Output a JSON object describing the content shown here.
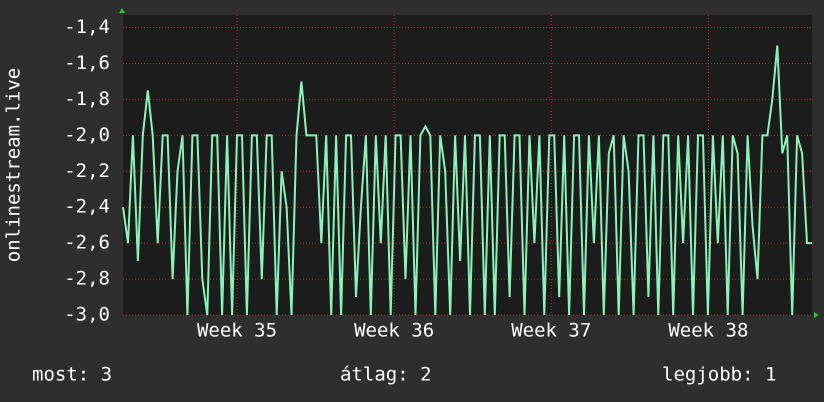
{
  "chart_data": {
    "type": "line",
    "y_label": "onlinestream.live",
    "color": "#88f5b8",
    "values": [
      -2.4,
      -2.6,
      -2.0,
      -2.7,
      -2.0,
      -1.75,
      -2.0,
      -2.6,
      -2.0,
      -2.0,
      -2.8,
      -2.2,
      -2.0,
      -3.0,
      -2.0,
      -2.0,
      -2.8,
      -3.0,
      -2.0,
      -2.0,
      -3.0,
      -2.0,
      -3.0,
      -2.0,
      -2.0,
      -3.0,
      -2.0,
      -2.0,
      -2.8,
      -2.0,
      -2.0,
      -3.0,
      -2.2,
      -2.4,
      -3.0,
      -2.0,
      -1.7,
      -2.0,
      -2.0,
      -2.0,
      -2.6,
      -2.0,
      -3.0,
      -2.0,
      -3.0,
      -2.0,
      -2.0,
      -2.9,
      -2.4,
      -2.0,
      -3.0,
      -2.0,
      -2.6,
      -2.0,
      -3.0,
      -2.0,
      -2.0,
      -2.8,
      -2.0,
      -3.0,
      -2.0,
      -1.95,
      -2.0,
      -3.0,
      -2.0,
      -2.2,
      -3.0,
      -2.0,
      -2.7,
      -2.0,
      -3.0,
      -2.0,
      -2.0,
      -3.0,
      -2.0,
      -3.0,
      -2.0,
      -2.0,
      -2.9,
      -2.0,
      -2.0,
      -3.0,
      -2.0,
      -2.6,
      -2.0,
      -3.0,
      -2.0,
      -2.0,
      -2.9,
      -2.0,
      -3.0,
      -2.0,
      -2.0,
      -3.0,
      -2.0,
      -2.6,
      -2.0,
      -3.0,
      -2.1,
      -2.0,
      -3.0,
      -2.0,
      -2.2,
      -3.0,
      -2.0,
      -2.0,
      -2.9,
      -2.0,
      -3.0,
      -2.0,
      -2.0,
      -3.0,
      -2.0,
      -2.6,
      -2.0,
      -3.0,
      -2.0,
      -2.0,
      -3.0,
      -2.0,
      -2.6,
      -2.0,
      -3.0,
      -2.0,
      -2.1,
      -3.0,
      -2.0,
      -2.5,
      -2.8,
      -2.0,
      -2.0,
      -1.8,
      -1.5,
      -2.1,
      -2.0,
      -3.0,
      -2.0,
      -2.1,
      -2.6,
      -2.6
    ],
    "xlim": [
      0,
      139
    ],
    "xticks": [
      {
        "value": 23,
        "label": "Week 35"
      },
      {
        "value": 54.7,
        "label": "Week 36"
      },
      {
        "value": 86.4,
        "label": "Week 37"
      },
      {
        "value": 118.1,
        "label": "Week 38"
      }
    ],
    "ylim": [
      -3.0,
      -1.33
    ],
    "yticks": [
      {
        "value": -3.0,
        "label": "-3,0"
      },
      {
        "value": -2.8,
        "label": "-2,8"
      },
      {
        "value": -2.6,
        "label": "-2,6"
      },
      {
        "value": -2.4,
        "label": "-2,4"
      },
      {
        "value": -2.2,
        "label": "-2,2"
      },
      {
        "value": -2.0,
        "label": "-2,0"
      },
      {
        "value": -1.8,
        "label": "-1,8"
      },
      {
        "value": -1.6,
        "label": "-1,6"
      },
      {
        "value": -1.4,
        "label": "-1,4"
      }
    ],
    "grid": true,
    "footer": [
      "most: 3",
      "átlag: 2",
      "legjobb: 1"
    ]
  }
}
